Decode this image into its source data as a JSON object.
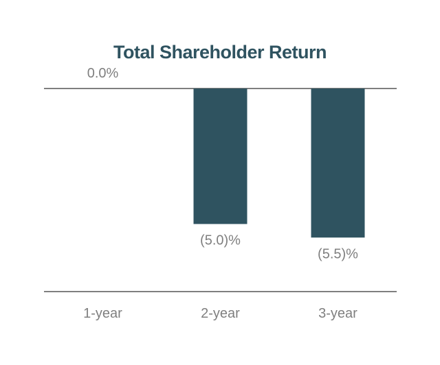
{
  "chart_data": {
    "type": "bar",
    "title": "Total Shareholder Return",
    "categories": [
      "1-year",
      "2-year",
      "3-year"
    ],
    "values": [
      0.0,
      -5.0,
      -5.5
    ],
    "data_labels": [
      "0.0%",
      "(5.0)%",
      "(5.5)%"
    ],
    "xlabel": "",
    "ylabel": "",
    "ylim": [
      -8,
      0
    ],
    "grid": false,
    "legend": "none",
    "colors": {
      "bar": "#2f5360",
      "title": "#2f5360",
      "axis": "#7f7f7f",
      "label": "#7f7f7f"
    }
  }
}
